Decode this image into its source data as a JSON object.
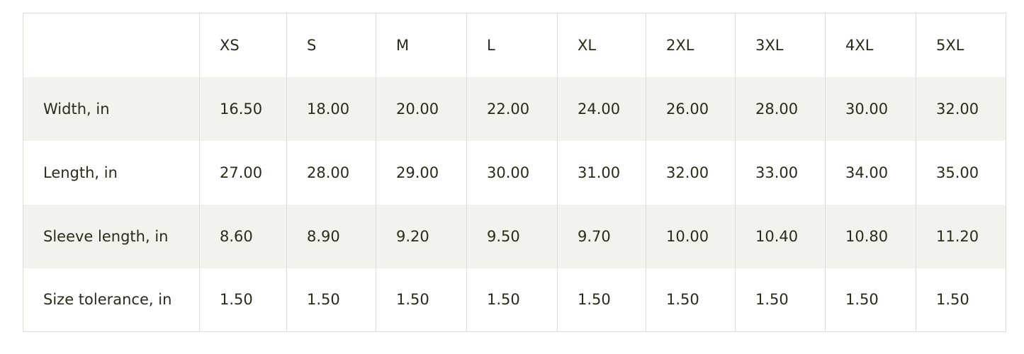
{
  "table": {
    "sizes": [
      "XS",
      "S",
      "M",
      "L",
      "XL",
      "2XL",
      "3XL",
      "4XL",
      "5XL"
    ],
    "rows": [
      {
        "label": "Width, in",
        "values": [
          "16.50",
          "18.00",
          "20.00",
          "22.00",
          "24.00",
          "26.00",
          "28.00",
          "30.00",
          "32.00"
        ]
      },
      {
        "label": "Length, in",
        "values": [
          "27.00",
          "28.00",
          "29.00",
          "30.00",
          "31.00",
          "32.00",
          "33.00",
          "34.00",
          "35.00"
        ]
      },
      {
        "label": "Sleeve length, in",
        "values": [
          "8.60",
          "8.90",
          "9.20",
          "9.50",
          "9.70",
          "10.00",
          "10.40",
          "10.80",
          "11.20"
        ]
      },
      {
        "label": "Size tolerance, in",
        "values": [
          "1.50",
          "1.50",
          "1.50",
          "1.50",
          "1.50",
          "1.50",
          "1.50",
          "1.50",
          "1.50"
        ]
      }
    ]
  }
}
